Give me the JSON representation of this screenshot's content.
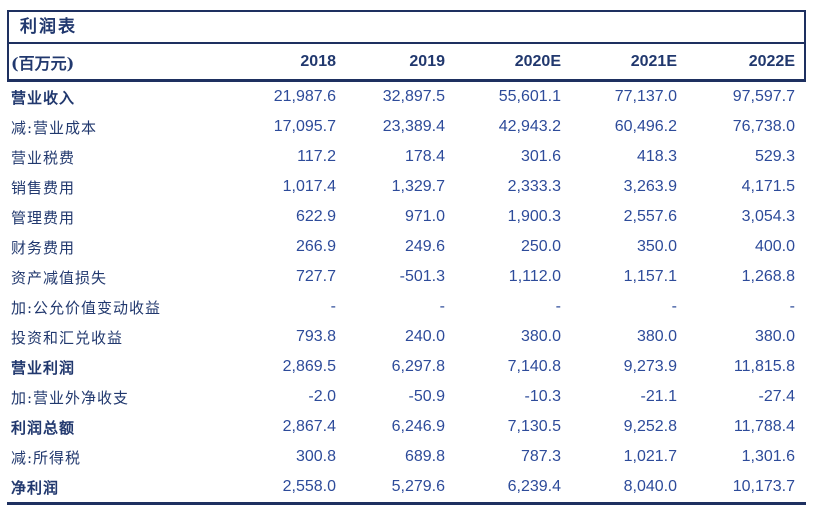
{
  "chart_data": {
    "type": "table",
    "title": "利润表",
    "unit_label": "(百万元)",
    "columns": [
      "2018",
      "2019",
      "2020E",
      "2021E",
      "2022E"
    ],
    "rows": [
      {
        "label": "营业收入",
        "bold": true,
        "values": [
          "21,987.6",
          "32,897.5",
          "55,601.1",
          "77,137.0",
          "97,597.7"
        ]
      },
      {
        "label": "减:营业成本",
        "bold": false,
        "values": [
          "17,095.7",
          "23,389.4",
          "42,943.2",
          "60,496.2",
          "76,738.0"
        ]
      },
      {
        "label": "营业税费",
        "bold": false,
        "values": [
          "117.2",
          "178.4",
          "301.6",
          "418.3",
          "529.3"
        ]
      },
      {
        "label": "销售费用",
        "bold": false,
        "values": [
          "1,017.4",
          "1,329.7",
          "2,333.3",
          "3,263.9",
          "4,171.5"
        ]
      },
      {
        "label": "管理费用",
        "bold": false,
        "values": [
          "622.9",
          "971.0",
          "1,900.3",
          "2,557.6",
          "3,054.3"
        ]
      },
      {
        "label": "财务费用",
        "bold": false,
        "values": [
          "266.9",
          "249.6",
          "250.0",
          "350.0",
          "400.0"
        ]
      },
      {
        "label": "资产减值损失",
        "bold": false,
        "values": [
          "727.7",
          "-501.3",
          "1,112.0",
          "1,157.1",
          "1,268.8"
        ]
      },
      {
        "label": "加:公允价值变动收益",
        "bold": false,
        "values": [
          "-",
          "-",
          "-",
          "-",
          "-"
        ]
      },
      {
        "label": "投资和汇兑收益",
        "bold": false,
        "values": [
          "793.8",
          "240.0",
          "380.0",
          "380.0",
          "380.0"
        ]
      },
      {
        "label": "营业利润",
        "bold": true,
        "values": [
          "2,869.5",
          "6,297.8",
          "7,140.8",
          "9,273.9",
          "11,815.8"
        ]
      },
      {
        "label": "加:营业外净收支",
        "bold": false,
        "values": [
          "-2.0",
          "-50.9",
          "-10.3",
          "-21.1",
          "-27.4"
        ]
      },
      {
        "label": "利润总额",
        "bold": true,
        "values": [
          "2,867.4",
          "6,246.9",
          "7,130.5",
          "9,252.8",
          "11,788.4"
        ]
      },
      {
        "label": "减:所得税",
        "bold": false,
        "values": [
          "300.8",
          "689.8",
          "787.3",
          "1,021.7",
          "1,301.6"
        ]
      },
      {
        "label": "净利润",
        "bold": true,
        "values": [
          "2,558.0",
          "5,279.6",
          "6,239.4",
          "8,040.0",
          "10,173.7"
        ]
      }
    ]
  },
  "colors": {
    "line": "#1e3060",
    "label_text": "#21386e",
    "number_text": "#2d4b9a"
  }
}
